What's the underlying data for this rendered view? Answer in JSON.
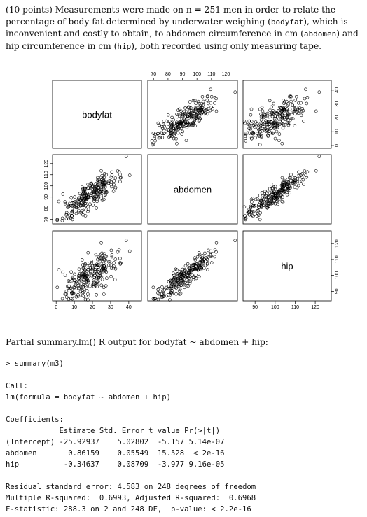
{
  "intro": {
    "lead": "(10 points) Measurements were made on n = 251 men in order to relate the percentage of body fat determined by underwater weighing (",
    "var1": "bodyfat",
    "mid1": "), which is inconvenient and costly to obtain, to abdomen circumference in cm (",
    "var2": "abdomen",
    "mid2": ") and hip circumference in cm (",
    "var3": "hip",
    "tail": "), both recorded using only measuring tape."
  },
  "chart_data": {
    "type": "scatter",
    "variables": [
      "bodyfat",
      "abdomen",
      "hip"
    ],
    "n": 251,
    "ticks": {
      "bodyfat": [
        0,
        10,
        20,
        30,
        40
      ],
      "abdomen": [
        70,
        80,
        90,
        100,
        110,
        120
      ],
      "hip": [
        90,
        100,
        110,
        120
      ]
    },
    "ranges": {
      "bodyfat": [
        -2,
        47
      ],
      "abdomen": [
        66,
        128
      ],
      "hip": [
        84,
        128
      ]
    },
    "grid": false
  },
  "output": {
    "partial": "Partial summary.lm() R output for bodyfat ~ abdomen + hip:",
    "command": "> summary(m3)",
    "call_label": "Call:",
    "call": "lm(formula = bodyfat ~ abdomen + hip)",
    "coef_label": "Coefficients:",
    "coef_header": "            Estimate Std. Error t value Pr(>|t|)",
    "coef_rows": [
      "(Intercept) -25.92937    5.02802  -5.157 5.14e-07",
      "abdomen       0.86159    0.05549  15.528  < 2e-16",
      "hip          -0.34637    0.08709  -3.977 9.16e-05"
    ],
    "rse": "Residual standard error: 4.583 on 248 degrees of freedom",
    "r2": "Multiple R-squared:  0.6993, Adjusted R-squared:  0.6968",
    "fstat": "F-statistic: 288.3 on 2 and 248 DF,  p-value: < 2.2e-16"
  }
}
